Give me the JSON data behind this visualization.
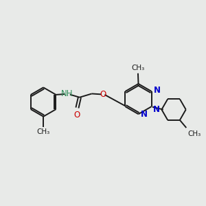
{
  "background_color": "#e8eae8",
  "bond_color": "#1a1a1a",
  "N_color": "#0000cc",
  "O_color": "#cc0000",
  "NH_color": "#2e8b57",
  "figsize": [
    3.0,
    3.0
  ],
  "dpi": 100,
  "xlim": [
    0,
    10
  ],
  "ylim": [
    0,
    10
  ]
}
